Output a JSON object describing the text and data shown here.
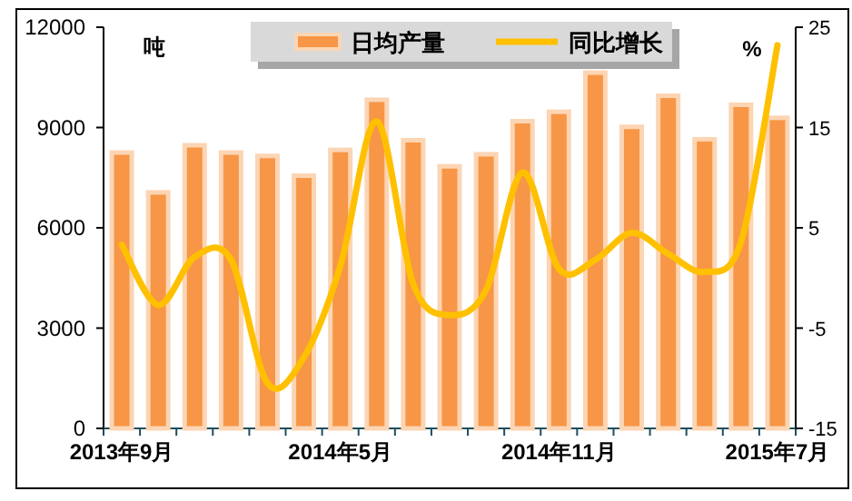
{
  "chart_data": {
    "type": "bar",
    "categories": [
      "2013年9月",
      null,
      null,
      null,
      null,
      null,
      "2014年5月",
      null,
      null,
      null,
      null,
      null,
      "2014年11月",
      null,
      null,
      null,
      null,
      null,
      "2015年7月"
    ],
    "series": [
      {
        "name": "日均产量",
        "color": "#f79646",
        "values": [
          8250,
          7060,
          8470,
          8250,
          8150,
          7560,
          8330,
          9830,
          8620,
          7840,
          8200,
          9190,
          9470,
          10640,
          9020,
          9950,
          8650,
          9680,
          9290
        ]
      },
      {
        "name": "同比增长",
        "type": "line",
        "axis": "y2",
        "color": "#ffc000",
        "values": [
          3.3,
          -2.7,
          2.1,
          1.8,
          -10.5,
          -7.9,
          1.2,
          15.6,
          -0.6,
          -3.7,
          -1.2,
          10.5,
          0.9,
          1.8,
          4.5,
          2.4,
          0.6,
          3.6,
          23.2
        ]
      }
    ],
    "ylabel": "吨",
    "y2label": "%",
    "ylim": [
      0,
      12000
    ],
    "yticks": [
      0,
      3000,
      6000,
      9000,
      12000
    ],
    "y2lim": [
      -15,
      25
    ],
    "y2ticks": [
      -15,
      -5,
      5,
      15,
      25
    ],
    "legend": "top"
  }
}
